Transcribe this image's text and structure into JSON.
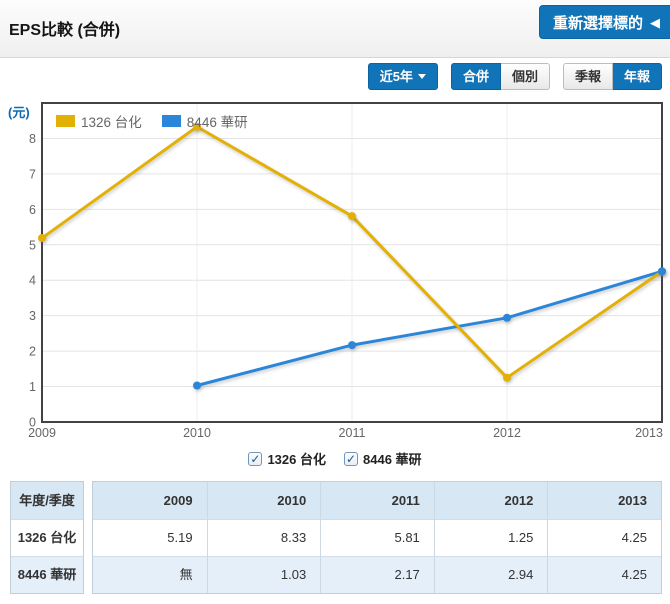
{
  "header": {
    "title": "EPS比較 (合併)",
    "reselect_button": "重新選擇標的"
  },
  "icons": {
    "back_arrow": "◀",
    "check": "✓"
  },
  "toolbar": {
    "range_button": {
      "label": "近5年"
    },
    "view_group": [
      {
        "label": "合併",
        "active": true
      },
      {
        "label": "個別",
        "active": false
      }
    ],
    "period_group": [
      {
        "label": "季報",
        "active": false
      },
      {
        "label": "年報",
        "active": true
      }
    ]
  },
  "chart_data": {
    "type": "line",
    "title": "EPS比較 (合併)",
    "unit_label": "(元)",
    "x": [
      2009,
      2010,
      2011,
      2012,
      2013
    ],
    "ylim": [
      0,
      9
    ],
    "yticks": [
      0,
      1,
      2,
      3,
      4,
      5,
      6,
      7,
      8
    ],
    "grid": true,
    "legend_position": "inside-top-left",
    "series": [
      {
        "name": "1326 台化",
        "color": "#e3b006",
        "values": [
          5.19,
          8.33,
          5.81,
          1.25,
          4.25
        ]
      },
      {
        "name": "8446 華研",
        "color": "#2b86d9",
        "values": [
          null,
          1.03,
          2.17,
          2.94,
          4.25
        ]
      }
    ]
  },
  "series_toggles": [
    {
      "label": "1326 台化",
      "checked": true
    },
    {
      "label": "8446 華研",
      "checked": true
    }
  ],
  "table": {
    "corner_header": "年度/季度",
    "col_headers": [
      "2009",
      "2010",
      "2011",
      "2012",
      "2013"
    ],
    "rows": [
      {
        "label": "1326 台化",
        "values": [
          "5.19",
          "8.33",
          "5.81",
          "1.25",
          "4.25"
        ]
      },
      {
        "label": "8446 華研",
        "values": [
          "無",
          "1.03",
          "2.17",
          "2.94",
          "4.25"
        ]
      }
    ]
  },
  "colors": {
    "accent_blue": "#1173b8",
    "table_header_bg": "#d7e7f4",
    "table_alt_bg": "#e4eff9",
    "axis_text": "#666666",
    "plot_border": "#424242"
  }
}
